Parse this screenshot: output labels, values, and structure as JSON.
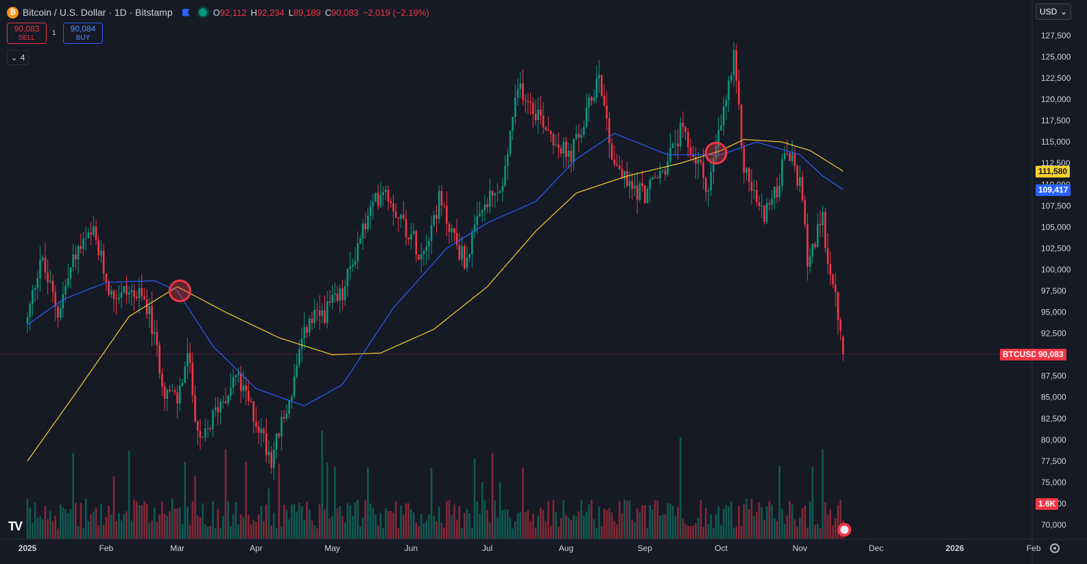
{
  "header": {
    "title": "Bitcoin / U.S. Dollar · 1D · Bitstamp",
    "ohlc": {
      "o_label": "O",
      "o": "92,112",
      "h_label": "H",
      "h": "92,234",
      "l_label": "L",
      "l": "89,189",
      "c_label": "C",
      "c": "90,083",
      "change": "−2,019 (−2.19%)"
    }
  },
  "trade": {
    "sell_price": "90,083",
    "sell_label": "SELL",
    "spread": "1",
    "buy_price": "90,084",
    "buy_label": "BUY"
  },
  "indicators_toggle": "4",
  "currency": "USD",
  "badges": {
    "ma_yellow": "111,580",
    "ma_blue": "109,417",
    "symbol": "BTCUSD",
    "last_price": "90,083",
    "volume": "1.6K"
  },
  "colors": {
    "up": "#089981",
    "down": "#f23645",
    "ma_fast": "#2962ff",
    "ma_slow": "#f5d130",
    "bg": "#161a25"
  },
  "chart_data": {
    "type": "candlestick",
    "y_ticks": [
      "70,000",
      "72,500",
      "75,000",
      "77,500",
      "80,000",
      "82,500",
      "85,000",
      "87,500",
      "90,000",
      "92,500",
      "95,000",
      "97,500",
      "100,000",
      "102,500",
      "105,000",
      "107,500",
      "110,000",
      "112,500",
      "115,000",
      "117,500",
      "120,000",
      "122,500",
      "125,000",
      "127,500"
    ],
    "x_ticks": [
      "2025",
      "Feb",
      "Mar",
      "Apr",
      "May",
      "Jun",
      "Jul",
      "Aug",
      "Sep",
      "Oct",
      "Nov",
      "Dec",
      "2026",
      "Feb"
    ],
    "y_range": [
      68800,
      129500
    ],
    "close_anchors": [
      [
        "2025-01-01",
        94000
      ],
      [
        "2025-01-06",
        101500
      ],
      [
        "2025-01-13",
        95000
      ],
      [
        "2025-01-20",
        102000
      ],
      [
        "2025-01-27",
        104000
      ],
      [
        "2025-02-03",
        97000
      ],
      [
        "2025-02-10",
        97500
      ],
      [
        "2025-02-17",
        96000
      ],
      [
        "2025-02-24",
        86000
      ],
      [
        "2025-03-01",
        84500
      ],
      [
        "2025-03-05",
        90000
      ],
      [
        "2025-03-10",
        79000
      ],
      [
        "2025-03-17",
        84000
      ],
      [
        "2025-03-24",
        87500
      ],
      [
        "2025-03-31",
        83000
      ],
      [
        "2025-04-07",
        78000
      ],
      [
        "2025-04-14",
        84500
      ],
      [
        "2025-04-21",
        93500
      ],
      [
        "2025-04-28",
        95000
      ],
      [
        "2025-05-05",
        97000
      ],
      [
        "2025-05-12",
        104000
      ],
      [
        "2025-05-21",
        110000
      ],
      [
        "2025-05-28",
        106000
      ],
      [
        "2025-06-05",
        102000
      ],
      [
        "2025-06-12",
        108000
      ],
      [
        "2025-06-22",
        101000
      ],
      [
        "2025-06-30",
        107500
      ],
      [
        "2025-07-07",
        109500
      ],
      [
        "2025-07-11",
        118000
      ],
      [
        "2025-07-14",
        121500
      ],
      [
        "2025-07-22",
        118000
      ],
      [
        "2025-08-02",
        113000
      ],
      [
        "2025-08-08",
        117000
      ],
      [
        "2025-08-14",
        123500
      ],
      [
        "2025-08-19",
        113500
      ],
      [
        "2025-08-25",
        110000
      ],
      [
        "2025-09-01",
        109000
      ],
      [
        "2025-09-08",
        111500
      ],
      [
        "2025-09-15",
        116000
      ],
      [
        "2025-09-22",
        112500
      ],
      [
        "2025-09-26",
        109500
      ],
      [
        "2025-10-01",
        117000
      ],
      [
        "2025-10-06",
        124500
      ],
      [
        "2025-10-10",
        112000
      ],
      [
        "2025-10-17",
        106500
      ],
      [
        "2025-10-22",
        108500
      ],
      [
        "2025-10-27",
        114000
      ],
      [
        "2025-11-01",
        110000
      ],
      [
        "2025-11-04",
        101500
      ],
      [
        "2025-11-10",
        105500
      ],
      [
        "2025-11-13",
        99500
      ],
      [
        "2025-11-16",
        94500
      ],
      [
        "2025-11-18",
        90083
      ]
    ],
    "ma_fast_anchors": [
      [
        "2025-01-01",
        93500
      ],
      [
        "2025-01-15",
        96500
      ],
      [
        "2025-02-01",
        98500
      ],
      [
        "2025-02-20",
        98700
      ],
      [
        "2025-03-01",
        97500
      ],
      [
        "2025-03-15",
        91000
      ],
      [
        "2025-04-01",
        86000
      ],
      [
        "2025-04-20",
        84000
      ],
      [
        "2025-05-05",
        86500
      ],
      [
        "2025-05-25",
        95500
      ],
      [
        "2025-06-15",
        102500
      ],
      [
        "2025-07-01",
        105500
      ],
      [
        "2025-07-20",
        108000
      ],
      [
        "2025-08-05",
        113000
      ],
      [
        "2025-08-20",
        116000
      ],
      [
        "2025-09-10",
        113500
      ],
      [
        "2025-10-01",
        113500
      ],
      [
        "2025-10-15",
        115000
      ],
      [
        "2025-11-01",
        113500
      ],
      [
        "2025-11-10",
        111000
      ],
      [
        "2025-11-18",
        109417
      ]
    ],
    "ma_slow_anchors": [
      [
        "2025-01-01",
        77500
      ],
      [
        "2025-01-20",
        85500
      ],
      [
        "2025-02-10",
        94500
      ],
      [
        "2025-03-01",
        98000
      ],
      [
        "2025-03-20",
        95000
      ],
      [
        "2025-04-10",
        92000
      ],
      [
        "2025-05-01",
        90000
      ],
      [
        "2025-05-20",
        90200
      ],
      [
        "2025-06-10",
        93000
      ],
      [
        "2025-07-01",
        98000
      ],
      [
        "2025-07-20",
        104500
      ],
      [
        "2025-08-05",
        109000
      ],
      [
        "2025-08-25",
        111000
      ],
      [
        "2025-09-15",
        112500
      ],
      [
        "2025-10-01",
        114000
      ],
      [
        "2025-10-10",
        115300
      ],
      [
        "2025-10-25",
        115000
      ],
      [
        "2025-11-05",
        114000
      ],
      [
        "2025-11-18",
        111580
      ]
    ],
    "crossovers": [
      [
        "2025-03-02",
        97500
      ],
      [
        "2025-09-29",
        113700
      ]
    ]
  }
}
